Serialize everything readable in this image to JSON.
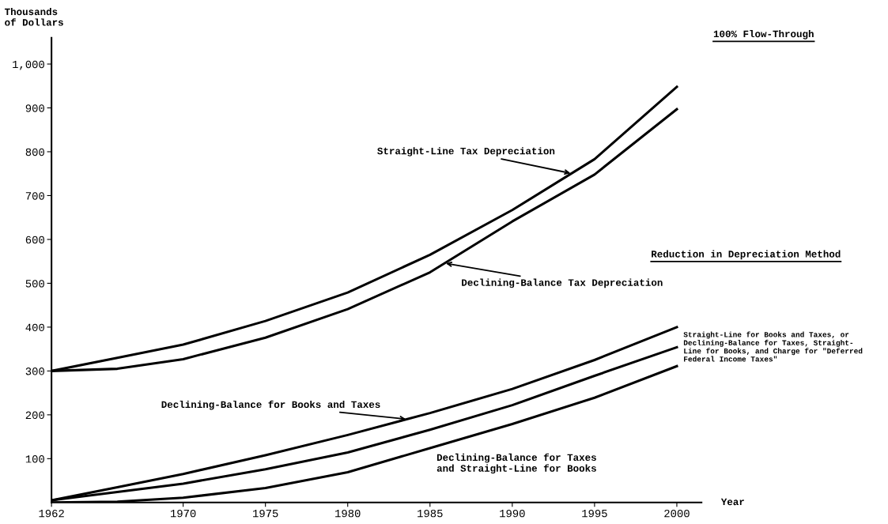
{
  "chart_data": {
    "type": "line",
    "x": [
      1962,
      1966,
      1970,
      1975,
      1980,
      1985,
      1990,
      1995,
      2000
    ],
    "xlim": [
      1962,
      2001.5
    ],
    "xticks": [
      1962,
      1970,
      1975,
      1980,
      1985,
      1990,
      1995,
      2000
    ],
    "ylim": [
      0,
      1060
    ],
    "yticks": [
      100,
      200,
      300,
      400,
      500,
      600,
      700,
      800,
      900,
      {
        "value": 1000,
        "label": "1,000"
      }
    ],
    "xlabel": "Year",
    "ylabel": "Thousands\nof Dollars",
    "series": [
      {
        "name": "Straight-Line Tax Depreciation",
        "color": "#000000",
        "values": [
          300,
          330,
          360,
          414,
          479,
          565,
          667,
          783,
          948
        ]
      },
      {
        "name": "Declining-Balance Tax Depreciation",
        "color": "#000000",
        "values": [
          300,
          305,
          327,
          376,
          441,
          525,
          641,
          748,
          897
        ]
      },
      {
        "name": "Declining-Balance for Books and Taxes",
        "color": "#000000",
        "values": [
          5,
          35,
          65,
          108,
          154,
          204,
          259,
          325,
          400
        ]
      },
      {
        "name": "Straight-Line for Books and Taxes, or\nDeclining-Balance for Taxes, Straight-\nLine for Books, and Charge for \"Deferred\nFederal Income Taxes\"",
        "color": "#000000",
        "values": [
          5,
          24,
          43,
          76,
          114,
          166,
          222,
          289,
          354
        ]
      },
      {
        "name": "Declining-Balance for Taxes\nand Straight-Line for Books",
        "color": "#000000",
        "values": [
          0,
          2,
          11,
          33,
          69,
          124,
          179,
          239,
          311
        ]
      }
    ],
    "annotations": [
      "100% Flow-Through",
      "Reduction in Depreciation Method"
    ],
    "grid": false,
    "legend": false,
    "marker": "none",
    "line_style": "solid"
  }
}
